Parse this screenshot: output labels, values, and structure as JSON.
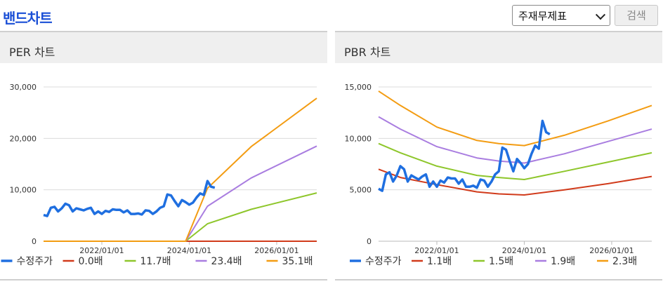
{
  "header": {
    "title": "밴드차트",
    "select_value": "주재무제표",
    "search_label": "검색"
  },
  "chart_data": [
    {
      "type": "line",
      "title": "PER 차트",
      "x_ticks": [
        "2022/01/01",
        "2024/01/01",
        "2026/01/01"
      ],
      "y_ticks": [
        "0",
        "10,000",
        "20,000",
        "30,000"
      ],
      "ylim": [
        0,
        30000
      ],
      "grid": "horizontal",
      "legend_position": "bottom",
      "price_series": {
        "name": "수정주가",
        "x": [
          "2020-09",
          "2020-10",
          "2020-11",
          "2020-12",
          "2021-01",
          "2021-02",
          "2021-03",
          "2021-04",
          "2021-05",
          "2021-06",
          "2021-07",
          "2021-08",
          "2021-09",
          "2021-10",
          "2021-11",
          "2021-12",
          "2022-01",
          "2022-02",
          "2022-03",
          "2022-04",
          "2022-05",
          "2022-06",
          "2022-07",
          "2022-08",
          "2022-09",
          "2022-10",
          "2022-11",
          "2022-12",
          "2023-01",
          "2023-02",
          "2023-03",
          "2023-04",
          "2023-05",
          "2023-06",
          "2023-07",
          "2023-08",
          "2023-09",
          "2023-10",
          "2023-11",
          "2023-12",
          "2024-01",
          "2024-02",
          "2024-03",
          "2024-04",
          "2024-05",
          "2024-06",
          "2024-07",
          "2024-08"
        ],
        "values": [
          5100,
          4900,
          6500,
          6700,
          5800,
          6400,
          7300,
          7000,
          5800,
          6400,
          6200,
          6000,
          6300,
          6500,
          5300,
          5800,
          5300,
          5900,
          5700,
          6200,
          6100,
          6100,
          5600,
          6000,
          5300,
          5300,
          5400,
          5200,
          6000,
          5900,
          5300,
          5800,
          6500,
          6800,
          9100,
          8900,
          7800,
          6800,
          8000,
          7600,
          7100,
          7500,
          8500,
          9300,
          9000,
          11700,
          10600,
          10400
        ]
      },
      "band_x": [
        "2020-09",
        "2023-12",
        "2024-06",
        "2025-06",
        "2026-12"
      ],
      "bands": [
        {
          "name": "0.0배",
          "color": "#d13b1b",
          "values": [
            0,
            0,
            0,
            0,
            0
          ]
        },
        {
          "name": "11.7배",
          "color": "#8ec62b",
          "values": [
            0,
            0,
            3400,
            6200,
            9400
          ]
        },
        {
          "name": "23.4배",
          "color": "#a97de0",
          "values": [
            0,
            0,
            6800,
            12300,
            18500
          ]
        },
        {
          "name": "35.1배",
          "color": "#f39c12",
          "values": [
            0,
            0,
            10300,
            18400,
            27800
          ]
        }
      ]
    },
    {
      "type": "line",
      "title": "PBR 차트",
      "x_ticks": [
        "2022/01/01",
        "2024/01/01",
        "2026/01/01"
      ],
      "y_ticks": [
        "0",
        "5,000",
        "10,000",
        "15,000"
      ],
      "ylim": [
        0,
        15000
      ],
      "grid": "horizontal",
      "legend_position": "bottom",
      "price_series": {
        "name": "수정주가",
        "x": [
          "2020-09",
          "2020-10",
          "2020-11",
          "2020-12",
          "2021-01",
          "2021-02",
          "2021-03",
          "2021-04",
          "2021-05",
          "2021-06",
          "2021-07",
          "2021-08",
          "2021-09",
          "2021-10",
          "2021-11",
          "2021-12",
          "2022-01",
          "2022-02",
          "2022-03",
          "2022-04",
          "2022-05",
          "2022-06",
          "2022-07",
          "2022-08",
          "2022-09",
          "2022-10",
          "2022-11",
          "2022-12",
          "2023-01",
          "2023-02",
          "2023-03",
          "2023-04",
          "2023-05",
          "2023-06",
          "2023-07",
          "2023-08",
          "2023-09",
          "2023-10",
          "2023-11",
          "2023-12",
          "2024-01",
          "2024-02",
          "2024-03",
          "2024-04",
          "2024-05",
          "2024-06",
          "2024-07",
          "2024-08"
        ],
        "values": [
          5100,
          4900,
          6500,
          6700,
          5800,
          6400,
          7300,
          7000,
          5800,
          6400,
          6200,
          6000,
          6300,
          6500,
          5300,
          5800,
          5300,
          5900,
          5700,
          6200,
          6100,
          6100,
          5600,
          6000,
          5300,
          5300,
          5400,
          5200,
          6000,
          5900,
          5300,
          5800,
          6500,
          6800,
          9100,
          8900,
          7800,
          6800,
          8000,
          7600,
          7100,
          7500,
          8500,
          9300,
          9000,
          11700,
          10600,
          10400
        ]
      },
      "band_x": [
        "2020-09",
        "2021-03",
        "2022-01",
        "2022-12",
        "2023-06",
        "2024-01",
        "2024-12",
        "2025-12",
        "2026-12"
      ],
      "bands": [
        {
          "name": "1.1배",
          "color": "#d13b1b",
          "values": [
            7000,
            6200,
            5500,
            4800,
            4600,
            4500,
            5000,
            5600,
            6300
          ]
        },
        {
          "name": "1.5배",
          "color": "#8ec62b",
          "values": [
            9500,
            8600,
            7300,
            6400,
            6200,
            6000,
            6800,
            7700,
            8600
          ]
        },
        {
          "name": "1.9배",
          "color": "#a97de0",
          "values": [
            12100,
            10900,
            9200,
            8100,
            7800,
            7600,
            8500,
            9700,
            10900
          ]
        },
        {
          "name": "2.3배",
          "color": "#f39c12",
          "values": [
            14600,
            13200,
            11100,
            9800,
            9500,
            9300,
            10300,
            11700,
            13200
          ]
        }
      ]
    }
  ]
}
